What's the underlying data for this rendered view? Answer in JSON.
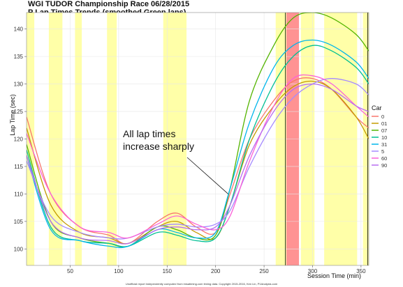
{
  "chart_data": {
    "type": "line",
    "title": "WGI TUDOR Championship Race 06/28/2015",
    "subtitle": "P Lap Times Trends (smoothed Green laps)",
    "xlabel": "Session Time (min)",
    "ylabel": "Lap Time (sec)",
    "xlim": [
      5,
      358
    ],
    "ylim": [
      97,
      143
    ],
    "x_ticks": [
      50,
      100,
      150,
      200,
      250,
      300,
      350
    ],
    "y_ticks": [
      100,
      105,
      110,
      115,
      120,
      125,
      130,
      135,
      140
    ],
    "legend_title": "Car",
    "legend_position": "right",
    "grid": true,
    "annotation": {
      "lines": [
        "All lap times",
        "increase sharply"
      ],
      "arrow_to": [
        213,
        110
      ]
    },
    "footer": "Unofficial report independently computed from imsatiming.com timing data. Copyright 2015-2016, Ken Lin, P1Analysis.com",
    "yellow_periods": [
      [
        5,
        13
      ],
      [
        28,
        42
      ],
      [
        55,
        62
      ],
      [
        88,
        98
      ],
      [
        146,
        170
      ],
      [
        262,
        273
      ],
      [
        288,
        302
      ],
      [
        312,
        346
      ],
      [
        352,
        358
      ]
    ],
    "red_periods": [
      [
        273,
        286
      ]
    ],
    "vlines": [
      [
        272,
        "#000000"
      ],
      [
        357,
        "#000000"
      ]
    ],
    "series": [
      {
        "name": "0",
        "color": "#F8766D",
        "x": [
          5,
          30,
          60,
          90,
          110,
          140,
          160,
          180,
          200,
          215,
          235,
          260,
          280,
          300,
          320,
          345,
          358
        ],
        "y": [
          124,
          110,
          104,
          102.5,
          101,
          105,
          106.5,
          104,
          103,
          110,
          120,
          127,
          130.5,
          131,
          129,
          124,
          122
        ]
      },
      {
        "name": "01",
        "color": "#C49A00",
        "x": [
          5,
          30,
          60,
          90,
          110,
          140,
          160,
          180,
          200,
          215,
          235,
          260,
          280,
          300,
          320,
          345,
          358
        ],
        "y": [
          122,
          108,
          103,
          102,
          101,
          104,
          105,
          103,
          102,
          108,
          119,
          126,
          129.5,
          130.5,
          129,
          124,
          120
        ]
      },
      {
        "name": "07",
        "color": "#53B400",
        "x": [
          5,
          30,
          60,
          90,
          110,
          140,
          160,
          180,
          200,
          215,
          235,
          260,
          280,
          300,
          320,
          345,
          358
        ],
        "y": [
          119,
          105,
          102,
          101,
          100.5,
          104,
          103.5,
          102,
          102.5,
          111,
          127,
          137,
          142,
          143,
          142,
          139,
          136
        ]
      },
      {
        "name": "10",
        "color": "#00C094",
        "x": [
          5,
          30,
          60,
          90,
          110,
          140,
          160,
          180,
          200,
          215,
          235,
          260,
          280,
          300,
          320,
          345,
          358
        ],
        "y": [
          118,
          104,
          101.5,
          101,
          100.5,
          103,
          102.5,
          101.5,
          102,
          108,
          120,
          130,
          135,
          137,
          136,
          133,
          130
        ]
      },
      {
        "name": "31",
        "color": "#00B6EB",
        "x": [
          5,
          30,
          60,
          90,
          110,
          140,
          160,
          180,
          200,
          215,
          235,
          260,
          280,
          300,
          320,
          345,
          358
        ],
        "y": [
          117,
          103.5,
          101.5,
          100.5,
          100.5,
          103.5,
          103,
          102,
          103,
          111,
          123,
          133,
          137,
          138,
          137,
          134,
          131
        ]
      },
      {
        "name": "5",
        "color": "#A58AFF",
        "x": [
          5,
          30,
          60,
          90,
          110,
          140,
          160,
          180,
          200,
          215,
          235,
          260,
          280,
          300,
          320,
          345,
          358
        ],
        "y": [
          116,
          106,
          103,
          102,
          102,
          104,
          104.5,
          104,
          104.5,
          107,
          115,
          123,
          127.5,
          130,
          131,
          130,
          128
        ]
      },
      {
        "name": "60",
        "color": "#FB61D7",
        "x": [
          5,
          30,
          60,
          90,
          110,
          140,
          160,
          180,
          200,
          215,
          235,
          260,
          280,
          300,
          320,
          345,
          358
        ],
        "y": [
          121,
          110,
          104,
          103,
          102,
          104.5,
          106,
          104.5,
          103.5,
          106,
          116,
          126,
          131,
          131.5,
          130,
          126,
          124
        ]
      },
      {
        "name": "90",
        "color": "#B86EF0",
        "x": [
          5,
          30,
          60,
          90,
          110,
          140,
          160,
          180,
          200,
          215,
          235,
          260,
          280,
          300,
          320,
          345,
          358
        ],
        "y": [
          117,
          105,
          102,
          101.5,
          101,
          103.5,
          104,
          103.5,
          104,
          108,
          117,
          125,
          129,
          130,
          129,
          126,
          125
        ]
      }
    ]
  }
}
